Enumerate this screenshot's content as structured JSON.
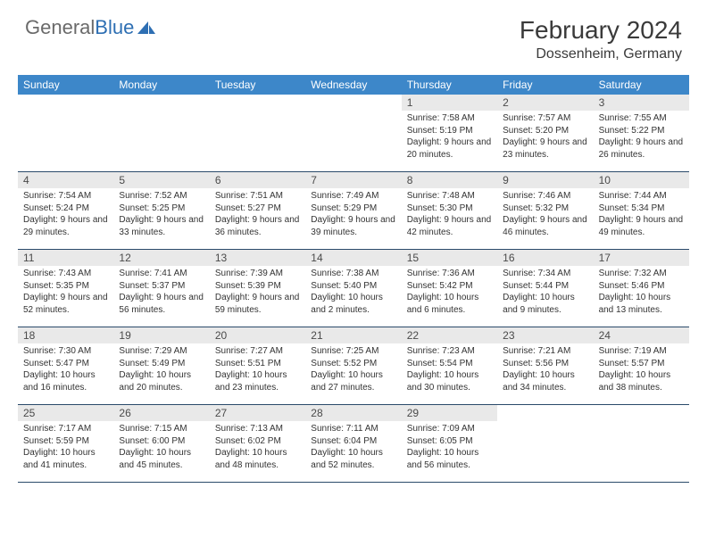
{
  "brand": {
    "name_part1": "General",
    "name_part2": "Blue",
    "icon_color": "#2e6fb3"
  },
  "header": {
    "title": "February 2024",
    "location": "Dossenheim, Germany"
  },
  "colors": {
    "header_bg": "#3d87c9",
    "header_text": "#ffffff",
    "daynum_bg": "#e9e9e9",
    "text": "#333333",
    "border": "#2a4a6a"
  },
  "weekdays": [
    "Sunday",
    "Monday",
    "Tuesday",
    "Wednesday",
    "Thursday",
    "Friday",
    "Saturday"
  ],
  "weeks": [
    [
      null,
      null,
      null,
      null,
      {
        "n": "1",
        "sunrise": "Sunrise: 7:58 AM",
        "sunset": "Sunset: 5:19 PM",
        "daylight": "Daylight: 9 hours and 20 minutes."
      },
      {
        "n": "2",
        "sunrise": "Sunrise: 7:57 AM",
        "sunset": "Sunset: 5:20 PM",
        "daylight": "Daylight: 9 hours and 23 minutes."
      },
      {
        "n": "3",
        "sunrise": "Sunrise: 7:55 AM",
        "sunset": "Sunset: 5:22 PM",
        "daylight": "Daylight: 9 hours and 26 minutes."
      }
    ],
    [
      {
        "n": "4",
        "sunrise": "Sunrise: 7:54 AM",
        "sunset": "Sunset: 5:24 PM",
        "daylight": "Daylight: 9 hours and 29 minutes."
      },
      {
        "n": "5",
        "sunrise": "Sunrise: 7:52 AM",
        "sunset": "Sunset: 5:25 PM",
        "daylight": "Daylight: 9 hours and 33 minutes."
      },
      {
        "n": "6",
        "sunrise": "Sunrise: 7:51 AM",
        "sunset": "Sunset: 5:27 PM",
        "daylight": "Daylight: 9 hours and 36 minutes."
      },
      {
        "n": "7",
        "sunrise": "Sunrise: 7:49 AM",
        "sunset": "Sunset: 5:29 PM",
        "daylight": "Daylight: 9 hours and 39 minutes."
      },
      {
        "n": "8",
        "sunrise": "Sunrise: 7:48 AM",
        "sunset": "Sunset: 5:30 PM",
        "daylight": "Daylight: 9 hours and 42 minutes."
      },
      {
        "n": "9",
        "sunrise": "Sunrise: 7:46 AM",
        "sunset": "Sunset: 5:32 PM",
        "daylight": "Daylight: 9 hours and 46 minutes."
      },
      {
        "n": "10",
        "sunrise": "Sunrise: 7:44 AM",
        "sunset": "Sunset: 5:34 PM",
        "daylight": "Daylight: 9 hours and 49 minutes."
      }
    ],
    [
      {
        "n": "11",
        "sunrise": "Sunrise: 7:43 AM",
        "sunset": "Sunset: 5:35 PM",
        "daylight": "Daylight: 9 hours and 52 minutes."
      },
      {
        "n": "12",
        "sunrise": "Sunrise: 7:41 AM",
        "sunset": "Sunset: 5:37 PM",
        "daylight": "Daylight: 9 hours and 56 minutes."
      },
      {
        "n": "13",
        "sunrise": "Sunrise: 7:39 AM",
        "sunset": "Sunset: 5:39 PM",
        "daylight": "Daylight: 9 hours and 59 minutes."
      },
      {
        "n": "14",
        "sunrise": "Sunrise: 7:38 AM",
        "sunset": "Sunset: 5:40 PM",
        "daylight": "Daylight: 10 hours and 2 minutes."
      },
      {
        "n": "15",
        "sunrise": "Sunrise: 7:36 AM",
        "sunset": "Sunset: 5:42 PM",
        "daylight": "Daylight: 10 hours and 6 minutes."
      },
      {
        "n": "16",
        "sunrise": "Sunrise: 7:34 AM",
        "sunset": "Sunset: 5:44 PM",
        "daylight": "Daylight: 10 hours and 9 minutes."
      },
      {
        "n": "17",
        "sunrise": "Sunrise: 7:32 AM",
        "sunset": "Sunset: 5:46 PM",
        "daylight": "Daylight: 10 hours and 13 minutes."
      }
    ],
    [
      {
        "n": "18",
        "sunrise": "Sunrise: 7:30 AM",
        "sunset": "Sunset: 5:47 PM",
        "daylight": "Daylight: 10 hours and 16 minutes."
      },
      {
        "n": "19",
        "sunrise": "Sunrise: 7:29 AM",
        "sunset": "Sunset: 5:49 PM",
        "daylight": "Daylight: 10 hours and 20 minutes."
      },
      {
        "n": "20",
        "sunrise": "Sunrise: 7:27 AM",
        "sunset": "Sunset: 5:51 PM",
        "daylight": "Daylight: 10 hours and 23 minutes."
      },
      {
        "n": "21",
        "sunrise": "Sunrise: 7:25 AM",
        "sunset": "Sunset: 5:52 PM",
        "daylight": "Daylight: 10 hours and 27 minutes."
      },
      {
        "n": "22",
        "sunrise": "Sunrise: 7:23 AM",
        "sunset": "Sunset: 5:54 PM",
        "daylight": "Daylight: 10 hours and 30 minutes."
      },
      {
        "n": "23",
        "sunrise": "Sunrise: 7:21 AM",
        "sunset": "Sunset: 5:56 PM",
        "daylight": "Daylight: 10 hours and 34 minutes."
      },
      {
        "n": "24",
        "sunrise": "Sunrise: 7:19 AM",
        "sunset": "Sunset: 5:57 PM",
        "daylight": "Daylight: 10 hours and 38 minutes."
      }
    ],
    [
      {
        "n": "25",
        "sunrise": "Sunrise: 7:17 AM",
        "sunset": "Sunset: 5:59 PM",
        "daylight": "Daylight: 10 hours and 41 minutes."
      },
      {
        "n": "26",
        "sunrise": "Sunrise: 7:15 AM",
        "sunset": "Sunset: 6:00 PM",
        "daylight": "Daylight: 10 hours and 45 minutes."
      },
      {
        "n": "27",
        "sunrise": "Sunrise: 7:13 AM",
        "sunset": "Sunset: 6:02 PM",
        "daylight": "Daylight: 10 hours and 48 minutes."
      },
      {
        "n": "28",
        "sunrise": "Sunrise: 7:11 AM",
        "sunset": "Sunset: 6:04 PM",
        "daylight": "Daylight: 10 hours and 52 minutes."
      },
      {
        "n": "29",
        "sunrise": "Sunrise: 7:09 AM",
        "sunset": "Sunset: 6:05 PM",
        "daylight": "Daylight: 10 hours and 56 minutes."
      },
      null,
      null
    ]
  ]
}
